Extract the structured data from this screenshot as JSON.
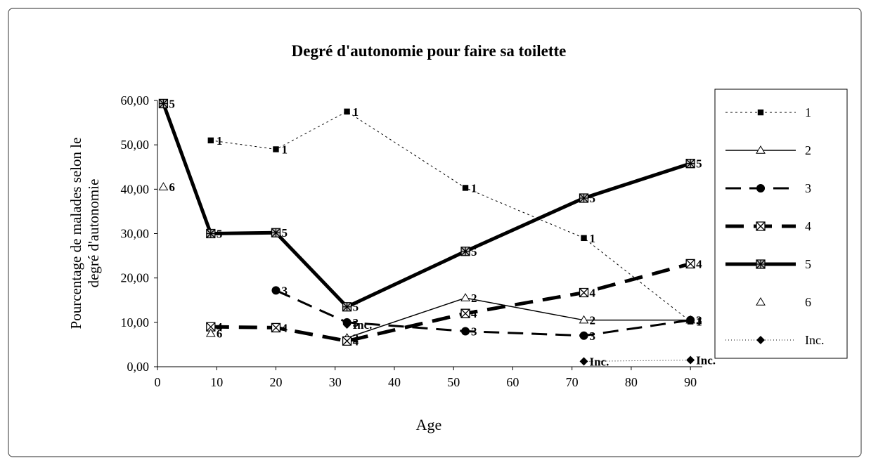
{
  "chart_data": {
    "type": "line",
    "title": "Degré d'autonomie pour faire sa toilette",
    "xlabel": "Age",
    "ylabel": [
      "Pourcentage de malades selon le",
      "degré d'autonomie"
    ],
    "x": [
      1,
      9,
      20,
      32,
      52,
      72,
      90
    ],
    "xlim": [
      0,
      92
    ],
    "xticks": [
      0,
      10,
      20,
      30,
      40,
      50,
      60,
      70,
      80,
      90
    ],
    "ylim": [
      0,
      60
    ],
    "yticks": [
      {
        "value": 0,
        "label": "0,00"
      },
      {
        "value": 10,
        "label": "10,00"
      },
      {
        "value": 20,
        "label": "20,00"
      },
      {
        "value": 30,
        "label": "30,00"
      },
      {
        "value": 40,
        "label": "40,00"
      },
      {
        "value": 50,
        "label": "50,00"
      },
      {
        "value": 60,
        "label": "60,00"
      }
    ],
    "legend": "right",
    "series": [
      {
        "name": "1",
        "color": "#000000",
        "width": 1,
        "dash": "3,4",
        "marker": "square",
        "values": [
          null,
          51,
          49,
          57.5,
          40.3,
          29,
          10.2
        ]
      },
      {
        "name": "2",
        "color": "#000000",
        "width": 1.5,
        "dash": "none",
        "marker": "triangle",
        "values": [
          null,
          null,
          null,
          6.5,
          15.5,
          10.5,
          10.5
        ]
      },
      {
        "name": "3",
        "color": "#000000",
        "width": 3,
        "dash": "22,12",
        "marker": "circle",
        "values": [
          null,
          null,
          17.2,
          10,
          8,
          7,
          10.5
        ]
      },
      {
        "name": "4",
        "color": "#000000",
        "width": 5,
        "dash": "26,14",
        "marker": "x",
        "values": [
          null,
          9,
          8.8,
          5.8,
          12,
          16.7,
          23.2
        ]
      },
      {
        "name": "5",
        "color": "#000000",
        "width": 5,
        "dash": "none",
        "marker": "xsquare",
        "values": [
          59.3,
          30,
          30.2,
          13.5,
          26,
          38,
          45.8
        ]
      },
      {
        "name": "6",
        "color": "#000000",
        "width": 0,
        "dash": "none",
        "marker": "triangle",
        "values": [
          40.5,
          7.5,
          null,
          null,
          null,
          null,
          null
        ]
      },
      {
        "name": "Inc.",
        "color": "#000000",
        "width": 1,
        "dash": "1,3",
        "marker": "diamond",
        "values": [
          null,
          null,
          null,
          9.5,
          null,
          1.2,
          1.5
        ]
      }
    ]
  }
}
